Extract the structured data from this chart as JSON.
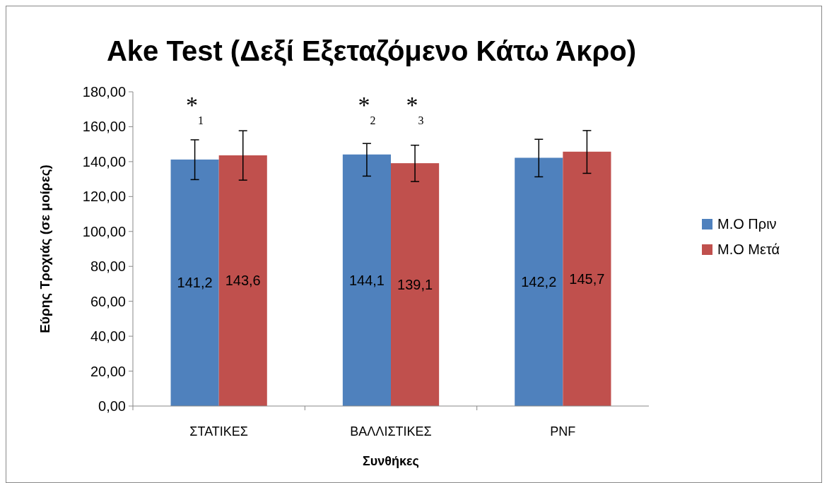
{
  "chart_data": {
    "type": "bar",
    "title": "Ake Test (Δεξί Εξεταζόμενο Κάτω Άκρο)",
    "xlabel": "Συνθήκες",
    "ylabel": "Εύρης Τροχιάς (σε μοίρες)",
    "categories": [
      "ΣΤΑΤΙΚΕΣ",
      "ΒΑΛΛΙΣΤΙΚΕΣ",
      "PNF"
    ],
    "series": [
      {
        "name": "Μ.Ο Πριν",
        "color": "#4f81bd",
        "values": [
          141.2,
          144.1,
          142.2
        ],
        "errors": [
          [
            129.7,
            152.5
          ],
          [
            131.7,
            150.4
          ],
          [
            131.3,
            152.8
          ]
        ],
        "value_labels": [
          "141,2",
          "144,1",
          "142,2"
        ]
      },
      {
        "name": "Μ.Ο Μετά",
        "color": "#c0504d",
        "values": [
          143.6,
          139.1,
          145.7
        ],
        "errors": [
          [
            129.4,
            157.7
          ],
          [
            128.6,
            149.4
          ],
          [
            133.3,
            157.8
          ]
        ],
        "value_labels": [
          "143,6",
          "139,1",
          "145,7"
        ]
      }
    ],
    "ylim": [
      0,
      180
    ],
    "yticks": [
      {
        "value": 0,
        "label": "0,00"
      },
      {
        "value": 20,
        "label": "20,00"
      },
      {
        "value": 40,
        "label": "40,00"
      },
      {
        "value": 60,
        "label": "60,00"
      },
      {
        "value": 80,
        "label": "80,00"
      },
      {
        "value": 100,
        "label": "100,00"
      },
      {
        "value": 120,
        "label": "120,00"
      },
      {
        "value": 140,
        "label": "140,00"
      },
      {
        "value": 160,
        "label": "160,00"
      },
      {
        "value": 180,
        "label": "180,00"
      }
    ],
    "annotations": [
      "*$_{1}$",
      "*$_{2}$",
      "*$_{3}$"
    ],
    "legend": "right",
    "grid": false
  }
}
